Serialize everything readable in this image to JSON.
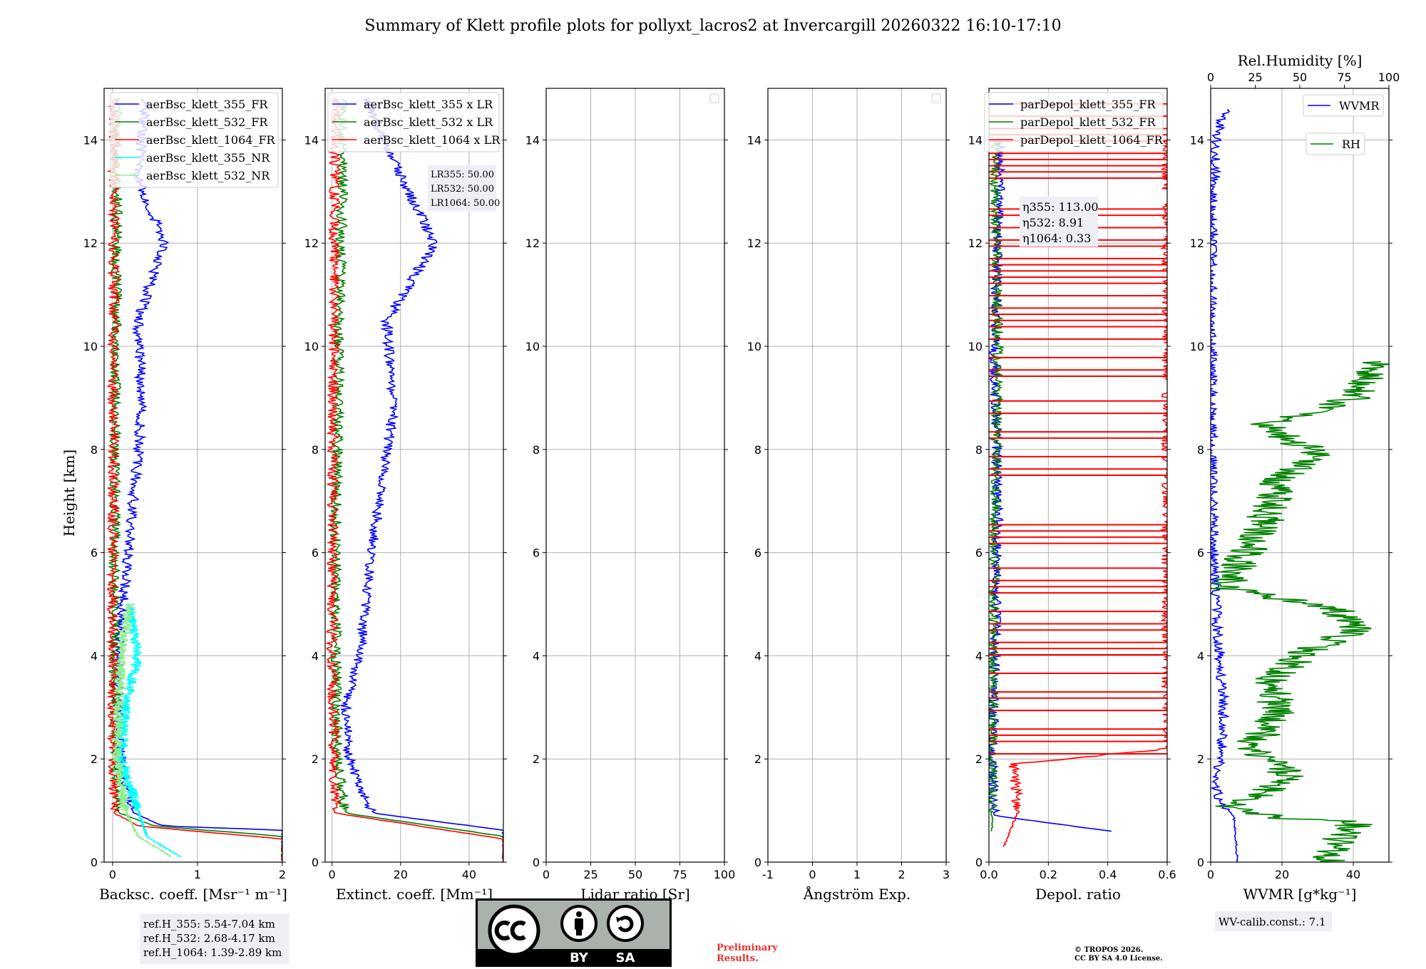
{
  "title": "Summary of Klett profile plots for pollyxt_lacros2 at Invercargill 20260322 16:10-17:10",
  "y_axis_label": "Height [km]",
  "reference_box": [
    "ref.H_355: 5.54-7.04 km",
    "ref.H_532: 2.68-4.17 km",
    "ref.H_1064: 1.39-2.89 km"
  ],
  "lr_box": [
    "LR355: 50.00",
    "LR532: 50.00",
    "LR1064: 50.00"
  ],
  "eta_box": [
    "η355: 113.00",
    "η532: 8.91",
    "η1064: 0.33"
  ],
  "wv_calib": "WV-calib.const.: 7.1",
  "preliminary": "Preliminary\nResults.",
  "copyright": "© TROPOS 2026.\nCC BY SA 4.0 License.",
  "license_badge": {
    "by": "BY",
    "sa": "SA"
  },
  "colors": {
    "b355": "#0000ff",
    "b532": "#008000",
    "b1064": "#ff0000",
    "nr355": "#00ffff",
    "nr532": "#90ee90",
    "wvmr": "#0000ff",
    "rh": "#008000"
  },
  "chart_data": [
    {
      "type": "line",
      "xlabel": "Backsc. coeff. [Msr⁻¹ m⁻¹]",
      "ylabel": "Height [km]",
      "xlim": [
        -0.1,
        2
      ],
      "ylim": [
        0,
        15
      ],
      "xticks": [
        0,
        1,
        2
      ],
      "yticks": [
        0,
        2,
        4,
        6,
        8,
        10,
        12,
        14
      ],
      "legend": "top-right",
      "series": [
        {
          "name": "aerBsc_klett_355_FR",
          "color": "#0000ff",
          "profile": [
            [
              0.0,
              2.0
            ],
            [
              0.62,
              2.0
            ],
            [
              0.7,
              0.6
            ],
            [
              0.95,
              0.25
            ],
            [
              1.5,
              0.15
            ],
            [
              2.0,
              0.1
            ],
            [
              4.0,
              0.05
            ],
            [
              6.2,
              0.2
            ],
            [
              8.8,
              0.35
            ],
            [
              10.5,
              0.3
            ],
            [
              12.0,
              0.6
            ],
            [
              13.3,
              0.3
            ],
            [
              14.8,
              0.4
            ]
          ]
        },
        {
          "name": "aerBsc_klett_532_FR",
          "color": "#008000",
          "profile": [
            [
              0.0,
              2.0
            ],
            [
              0.5,
              2.0
            ],
            [
              0.7,
              0.5
            ],
            [
              0.95,
              0.08
            ],
            [
              2.0,
              0.03
            ],
            [
              6.0,
              0.02
            ],
            [
              10.0,
              0.04
            ],
            [
              13.0,
              0.05
            ],
            [
              14.8,
              0.05
            ]
          ]
        },
        {
          "name": "aerBsc_klett_1064_FR",
          "color": "#ff0000",
          "profile": [
            [
              0.0,
              2.0
            ],
            [
              0.45,
              2.0
            ],
            [
              0.7,
              0.3
            ],
            [
              0.95,
              0.02
            ],
            [
              4.0,
              0.0
            ],
            [
              10.0,
              0.01
            ],
            [
              14.8,
              0.02
            ]
          ]
        },
        {
          "name": "aerBsc_klett_355_NR",
          "color": "#00ffff",
          "profile": [
            [
              0.1,
              0.8
            ],
            [
              0.5,
              0.4
            ],
            [
              1.0,
              0.3
            ],
            [
              2.0,
              0.1
            ],
            [
              3.0,
              0.15
            ],
            [
              4.0,
              0.3
            ],
            [
              5.0,
              0.2
            ]
          ]
        },
        {
          "name": "aerBsc_klett_532_NR",
          "color": "#90ee90",
          "profile": [
            [
              0.1,
              0.7
            ],
            [
              0.5,
              0.3
            ],
            [
              1.0,
              0.15
            ],
            [
              2.0,
              0.05
            ],
            [
              4.0,
              0.1
            ],
            [
              5.0,
              0.2
            ]
          ]
        }
      ]
    },
    {
      "type": "line",
      "xlabel": "Extinct. coeff. [Mm⁻¹]",
      "ylabel": "",
      "xlim": [
        -2,
        50
      ],
      "ylim": [
        0,
        15
      ],
      "xticks": [
        0,
        20,
        40
      ],
      "yticks": [
        0,
        2,
        4,
        6,
        8,
        10,
        12,
        14
      ],
      "legend": "top-right",
      "series": [
        {
          "name": "aerBsc_klett_355 x LR",
          "color": "#0000ff",
          "profile": [
            [
              0.0,
              50
            ],
            [
              0.62,
              50
            ],
            [
              0.95,
              12
            ],
            [
              1.5,
              8
            ],
            [
              2.0,
              5
            ],
            [
              3.0,
              4
            ],
            [
              4.0,
              8
            ],
            [
              6.2,
              12
            ],
            [
              8.8,
              18
            ],
            [
              10.5,
              16
            ],
            [
              12.0,
              30
            ],
            [
              13.3,
              20
            ],
            [
              14.8,
              10
            ]
          ]
        },
        {
          "name": "aerBsc_klett_532 x LR",
          "color": "#008000",
          "profile": [
            [
              0.0,
              50
            ],
            [
              0.5,
              50
            ],
            [
              0.95,
              4
            ],
            [
              2.0,
              1.5
            ],
            [
              6.0,
              1
            ],
            [
              10.0,
              2
            ],
            [
              13.0,
              3
            ],
            [
              14.8,
              3
            ]
          ]
        },
        {
          "name": "aerBsc_klett_1064 x LR",
          "color": "#ff0000",
          "profile": [
            [
              0.0,
              50
            ],
            [
              0.45,
              50
            ],
            [
              0.95,
              1.0
            ],
            [
              4.0,
              0.0
            ],
            [
              10.0,
              0.5
            ],
            [
              14.8,
              1
            ]
          ]
        }
      ]
    },
    {
      "type": "line",
      "xlabel": "Lidar ratio [Sr]",
      "ylabel": "",
      "xlim": [
        0,
        100
      ],
      "ylim": [
        0,
        15
      ],
      "xticks": [
        0,
        25,
        50,
        75,
        100
      ],
      "yticks": [
        0,
        2,
        4,
        6,
        8,
        10,
        12,
        14
      ],
      "series": []
    },
    {
      "type": "line",
      "xlabel": "Ångström Exp.",
      "ylabel": "",
      "xlim": [
        -1,
        3
      ],
      "ylim": [
        0,
        15
      ],
      "xticks": [
        -1,
        0,
        1,
        2,
        3
      ],
      "yticks": [
        0,
        2,
        4,
        6,
        8,
        10,
        12,
        14
      ],
      "series": []
    },
    {
      "type": "line",
      "xlabel": "Depol. ratio",
      "ylabel": "",
      "xlim": [
        0,
        0.6
      ],
      "ylim": [
        0,
        15
      ],
      "xticks": [
        0.0,
        0.2,
        0.4,
        0.6
      ],
      "yticks": [
        0,
        2,
        4,
        6,
        8,
        10,
        12,
        14
      ],
      "legend": "top-right",
      "series": [
        {
          "name": "parDepol_klett_355_FR",
          "color": "#0000ff",
          "profile": [
            [
              0.6,
              0.41
            ],
            [
              0.9,
              0.02
            ],
            [
              2.0,
              0.01
            ],
            [
              4.0,
              0.02
            ],
            [
              6.0,
              0.03
            ],
            [
              10.0,
              0.02
            ],
            [
              14.0,
              0.04
            ]
          ]
        },
        {
          "name": "parDepol_klett_532_FR",
          "color": "#008000",
          "profile": [
            [
              0.6,
              0.01
            ],
            [
              2.0,
              0.01
            ],
            [
              6.0,
              0.02
            ],
            [
              10.0,
              0.03
            ],
            [
              14.0,
              0.02
            ]
          ]
        },
        {
          "name": "parDepol_klett_1064_FR",
          "color": "#ff0000",
          "profile": [
            [
              0.3,
              0.05
            ],
            [
              1.0,
              0.1
            ],
            [
              1.9,
              0.08
            ],
            [
              2.2,
              0.6
            ],
            [
              6.0,
              0.6
            ],
            [
              10.0,
              0.6
            ],
            [
              14.0,
              0.6
            ]
          ]
        }
      ]
    },
    {
      "type": "line",
      "xlabel": "WVMR [g*kg⁻¹]",
      "ylabel": "",
      "xlim": [
        0,
        50
      ],
      "ylim": [
        0,
        15
      ],
      "xticks": [
        0,
        20,
        40
      ],
      "yticks": [
        0,
        2,
        4,
        6,
        8,
        10,
        12,
        14
      ],
      "legend": "top-right",
      "top_axis": {
        "label": "Rel.Humidity [%]",
        "xlim": [
          0,
          100
        ],
        "xticks": [
          0,
          25,
          50,
          75,
          100
        ]
      },
      "series": [
        {
          "name": "WVMR",
          "color": "#0000ff",
          "profile": [
            [
              0.0,
              7.5
            ],
            [
              0.9,
              6.5
            ],
            [
              1.2,
              2.0
            ],
            [
              1.6,
              1.5
            ],
            [
              2.0,
              3.0
            ],
            [
              3.0,
              3.5
            ],
            [
              4.0,
              2.5
            ],
            [
              5.0,
              1.5
            ],
            [
              6.0,
              0.8
            ],
            [
              8.0,
              0.3
            ],
            [
              10.0,
              0.3
            ],
            [
              12.0,
              0.5
            ],
            [
              14.0,
              1.5
            ],
            [
              14.6,
              4.0
            ]
          ]
        },
        {
          "name": "RH",
          "color": "#008000",
          "axis": "top",
          "profile": [
            [
              0.0,
              65
            ],
            [
              0.3,
              70
            ],
            [
              0.8,
              82
            ],
            [
              0.85,
              40
            ],
            [
              1.1,
              10
            ],
            [
              1.3,
              25
            ],
            [
              1.6,
              42
            ],
            [
              1.9,
              40
            ],
            [
              2.2,
              20
            ],
            [
              2.5,
              30
            ],
            [
              3.0,
              38
            ],
            [
              3.5,
              32
            ],
            [
              4.0,
              50
            ],
            [
              4.5,
              80
            ],
            [
              4.9,
              70
            ],
            [
              5.3,
              10
            ],
            [
              6.0,
              20
            ],
            [
              6.6,
              30
            ],
            [
              7.5,
              40
            ],
            [
              7.9,
              60
            ],
            [
              8.5,
              30
            ],
            [
              9.0,
              80
            ],
            [
              9.5,
              90
            ],
            [
              9.7,
              95
            ]
          ]
        }
      ]
    }
  ]
}
